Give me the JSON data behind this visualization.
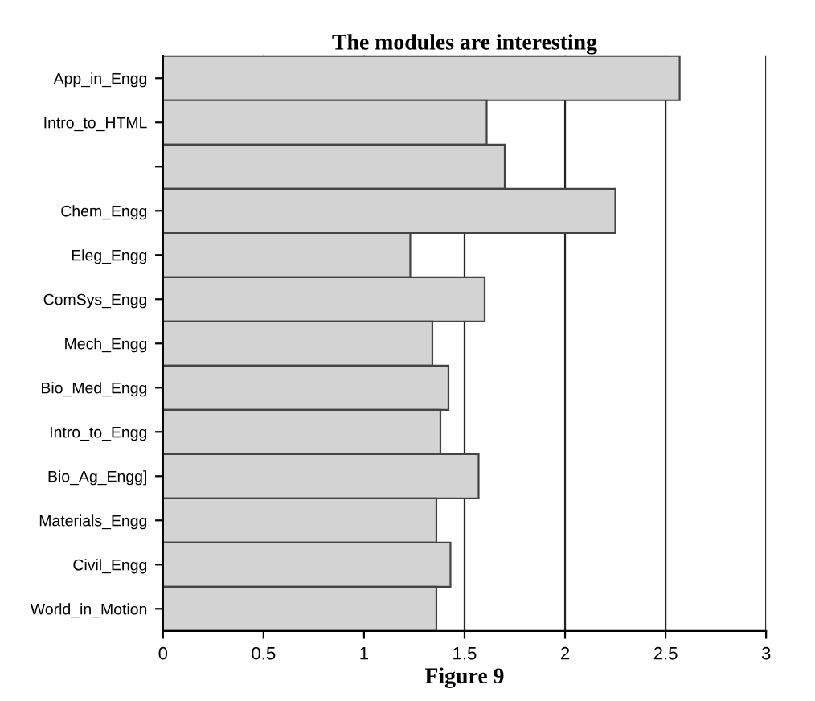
{
  "chart_data": {
    "type": "bar",
    "orientation": "horizontal",
    "title": "The modules are interesting",
    "xlabel": "Figure 9",
    "categories": [
      "App_in_Engg",
      "Intro_to_HTML",
      null,
      "Chem_Engg",
      "Eleg_Engg",
      "ComSys_Engg",
      "Mech_Engg",
      "Bio_Med_Engg",
      "Intro_to_Engg",
      "Bio_Ag_Engg]",
      "Materials_Engg",
      "Civil_Engg",
      "World_in_Motion"
    ],
    "values": [
      2.57,
      1.61,
      1.7,
      2.25,
      1.23,
      1.6,
      1.34,
      1.42,
      1.38,
      1.57,
      1.36,
      1.43,
      1.36
    ],
    "color": "#d3d3d3",
    "xlim": [
      0,
      3
    ],
    "xticks": [
      0,
      0.5,
      1,
      1.5,
      2,
      2.5,
      3
    ],
    "grid": "x"
  }
}
